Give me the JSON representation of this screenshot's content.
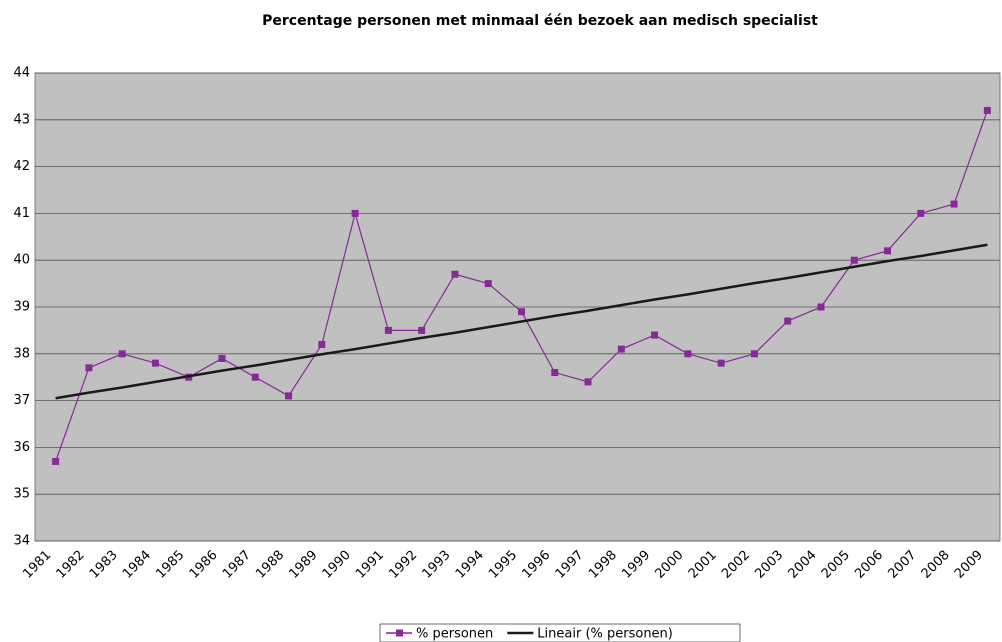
{
  "chart_data": {
    "type": "line",
    "title": "Percentage personen met minmaal één bezoek aan medisch specialist",
    "categories": [
      "1981",
      "1982",
      "1983",
      "1984",
      "1985",
      "1986",
      "1987",
      "1988",
      "1989",
      "1990",
      "1991",
      "1992",
      "1993",
      "1994",
      "1995",
      "1996",
      "1997",
      "1998",
      "1999",
      "2000",
      "2001",
      "2002",
      "2003",
      "2004",
      "2005",
      "2006",
      "2007",
      "2008",
      "2009"
    ],
    "series": [
      {
        "name": "% personen",
        "color": "#862a96",
        "marker": true,
        "values": [
          35.7,
          37.7,
          38.0,
          37.8,
          37.5,
          37.9,
          37.5,
          37.1,
          38.2,
          41.0,
          38.5,
          38.5,
          39.7,
          39.5,
          38.9,
          37.6,
          37.4,
          38.1,
          38.4,
          38.0,
          37.8,
          38.0,
          38.7,
          39.0,
          40.0,
          40.2,
          41.0,
          41.2,
          43.2
        ]
      },
      {
        "name": "Lineair (% personen)",
        "color": "#1a1a1a",
        "marker": false,
        "values": [
          37.05,
          37.17,
          37.28,
          37.4,
          37.52,
          37.64,
          37.75,
          37.87,
          37.99,
          38.1,
          38.22,
          38.34,
          38.45,
          38.57,
          38.69,
          38.81,
          38.92,
          39.04,
          39.16,
          39.27,
          39.39,
          39.51,
          39.62,
          39.74,
          39.86,
          39.98,
          40.09,
          40.21,
          40.33
        ]
      }
    ],
    "ylim": [
      34,
      44
    ],
    "yticks": [
      34,
      35,
      36,
      37,
      38,
      39,
      40,
      41,
      42,
      43,
      44
    ],
    "grid": true,
    "legend": "bottom"
  }
}
